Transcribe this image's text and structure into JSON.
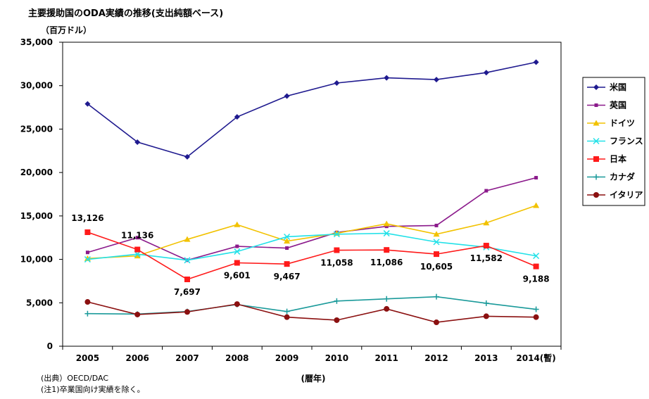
{
  "header": {
    "title": "主要援助国のODA実績の推移(支出純額ベース)",
    "unit": "（百万ドル）"
  },
  "footer": {
    "source": "(出典）OECD/DAC",
    "note": "(注1)卒業国向け実績を除く。"
  },
  "chart_data": {
    "type": "line",
    "xlabel": "(暦年)",
    "ylabel": "",
    "ylim": [
      0,
      35000
    ],
    "yticks": [
      0,
      5000,
      10000,
      15000,
      20000,
      25000,
      30000,
      35000
    ],
    "ytick_labels": [
      "0",
      "5,000",
      "10,000",
      "15,000",
      "20,000",
      "25,000",
      "30,000",
      "35,000"
    ],
    "categories": [
      "2005",
      "2006",
      "2007",
      "2008",
      "2009",
      "2010",
      "2011",
      "2012",
      "2013",
      "2014(暫)"
    ],
    "legend_position": "right",
    "grid": false,
    "series": [
      {
        "name": "米国",
        "color": "#1f1a8f",
        "marker": "diamond",
        "values": [
          27900,
          23500,
          21800,
          26400,
          28800,
          30300,
          30900,
          30700,
          31500,
          32700
        ]
      },
      {
        "name": "英国",
        "color": "#8b1a8b",
        "marker": "square",
        "values": [
          10800,
          12500,
          9900,
          11500,
          11300,
          13100,
          13800,
          13900,
          17900,
          19400
        ]
      },
      {
        "name": "ドイツ",
        "color": "#f2c200",
        "marker": "triangle",
        "values": [
          10100,
          10400,
          12300,
          14000,
          12100,
          13000,
          14100,
          12900,
          14200,
          16200
        ]
      },
      {
        "name": "フランス",
        "color": "#22e1e8",
        "marker": "x",
        "values": [
          10000,
          10600,
          9900,
          10900,
          12600,
          12900,
          13000,
          12000,
          11400,
          10400
        ]
      },
      {
        "name": "日本",
        "color": "#ff1a1a",
        "marker": "bigsquare",
        "values": [
          13126,
          11136,
          7697,
          9601,
          9467,
          11058,
          11086,
          10605,
          11582,
          9188
        ],
        "labels": [
          "13,126",
          "11,136",
          "7,697",
          "9,601",
          "9,467",
          "11,058",
          "11,086",
          "10,605",
          "11,582",
          "9,188"
        ]
      },
      {
        "name": "カナダ",
        "color": "#1a9a9a",
        "marker": "plus",
        "values": [
          3750,
          3700,
          4000,
          4800,
          4000,
          5200,
          5450,
          5700,
          4950,
          4250
        ]
      },
      {
        "name": "イタリア",
        "color": "#8b1010",
        "marker": "circle",
        "values": [
          5100,
          3650,
          3950,
          4850,
          3350,
          3000,
          4300,
          2750,
          3450,
          3350
        ]
      }
    ]
  }
}
